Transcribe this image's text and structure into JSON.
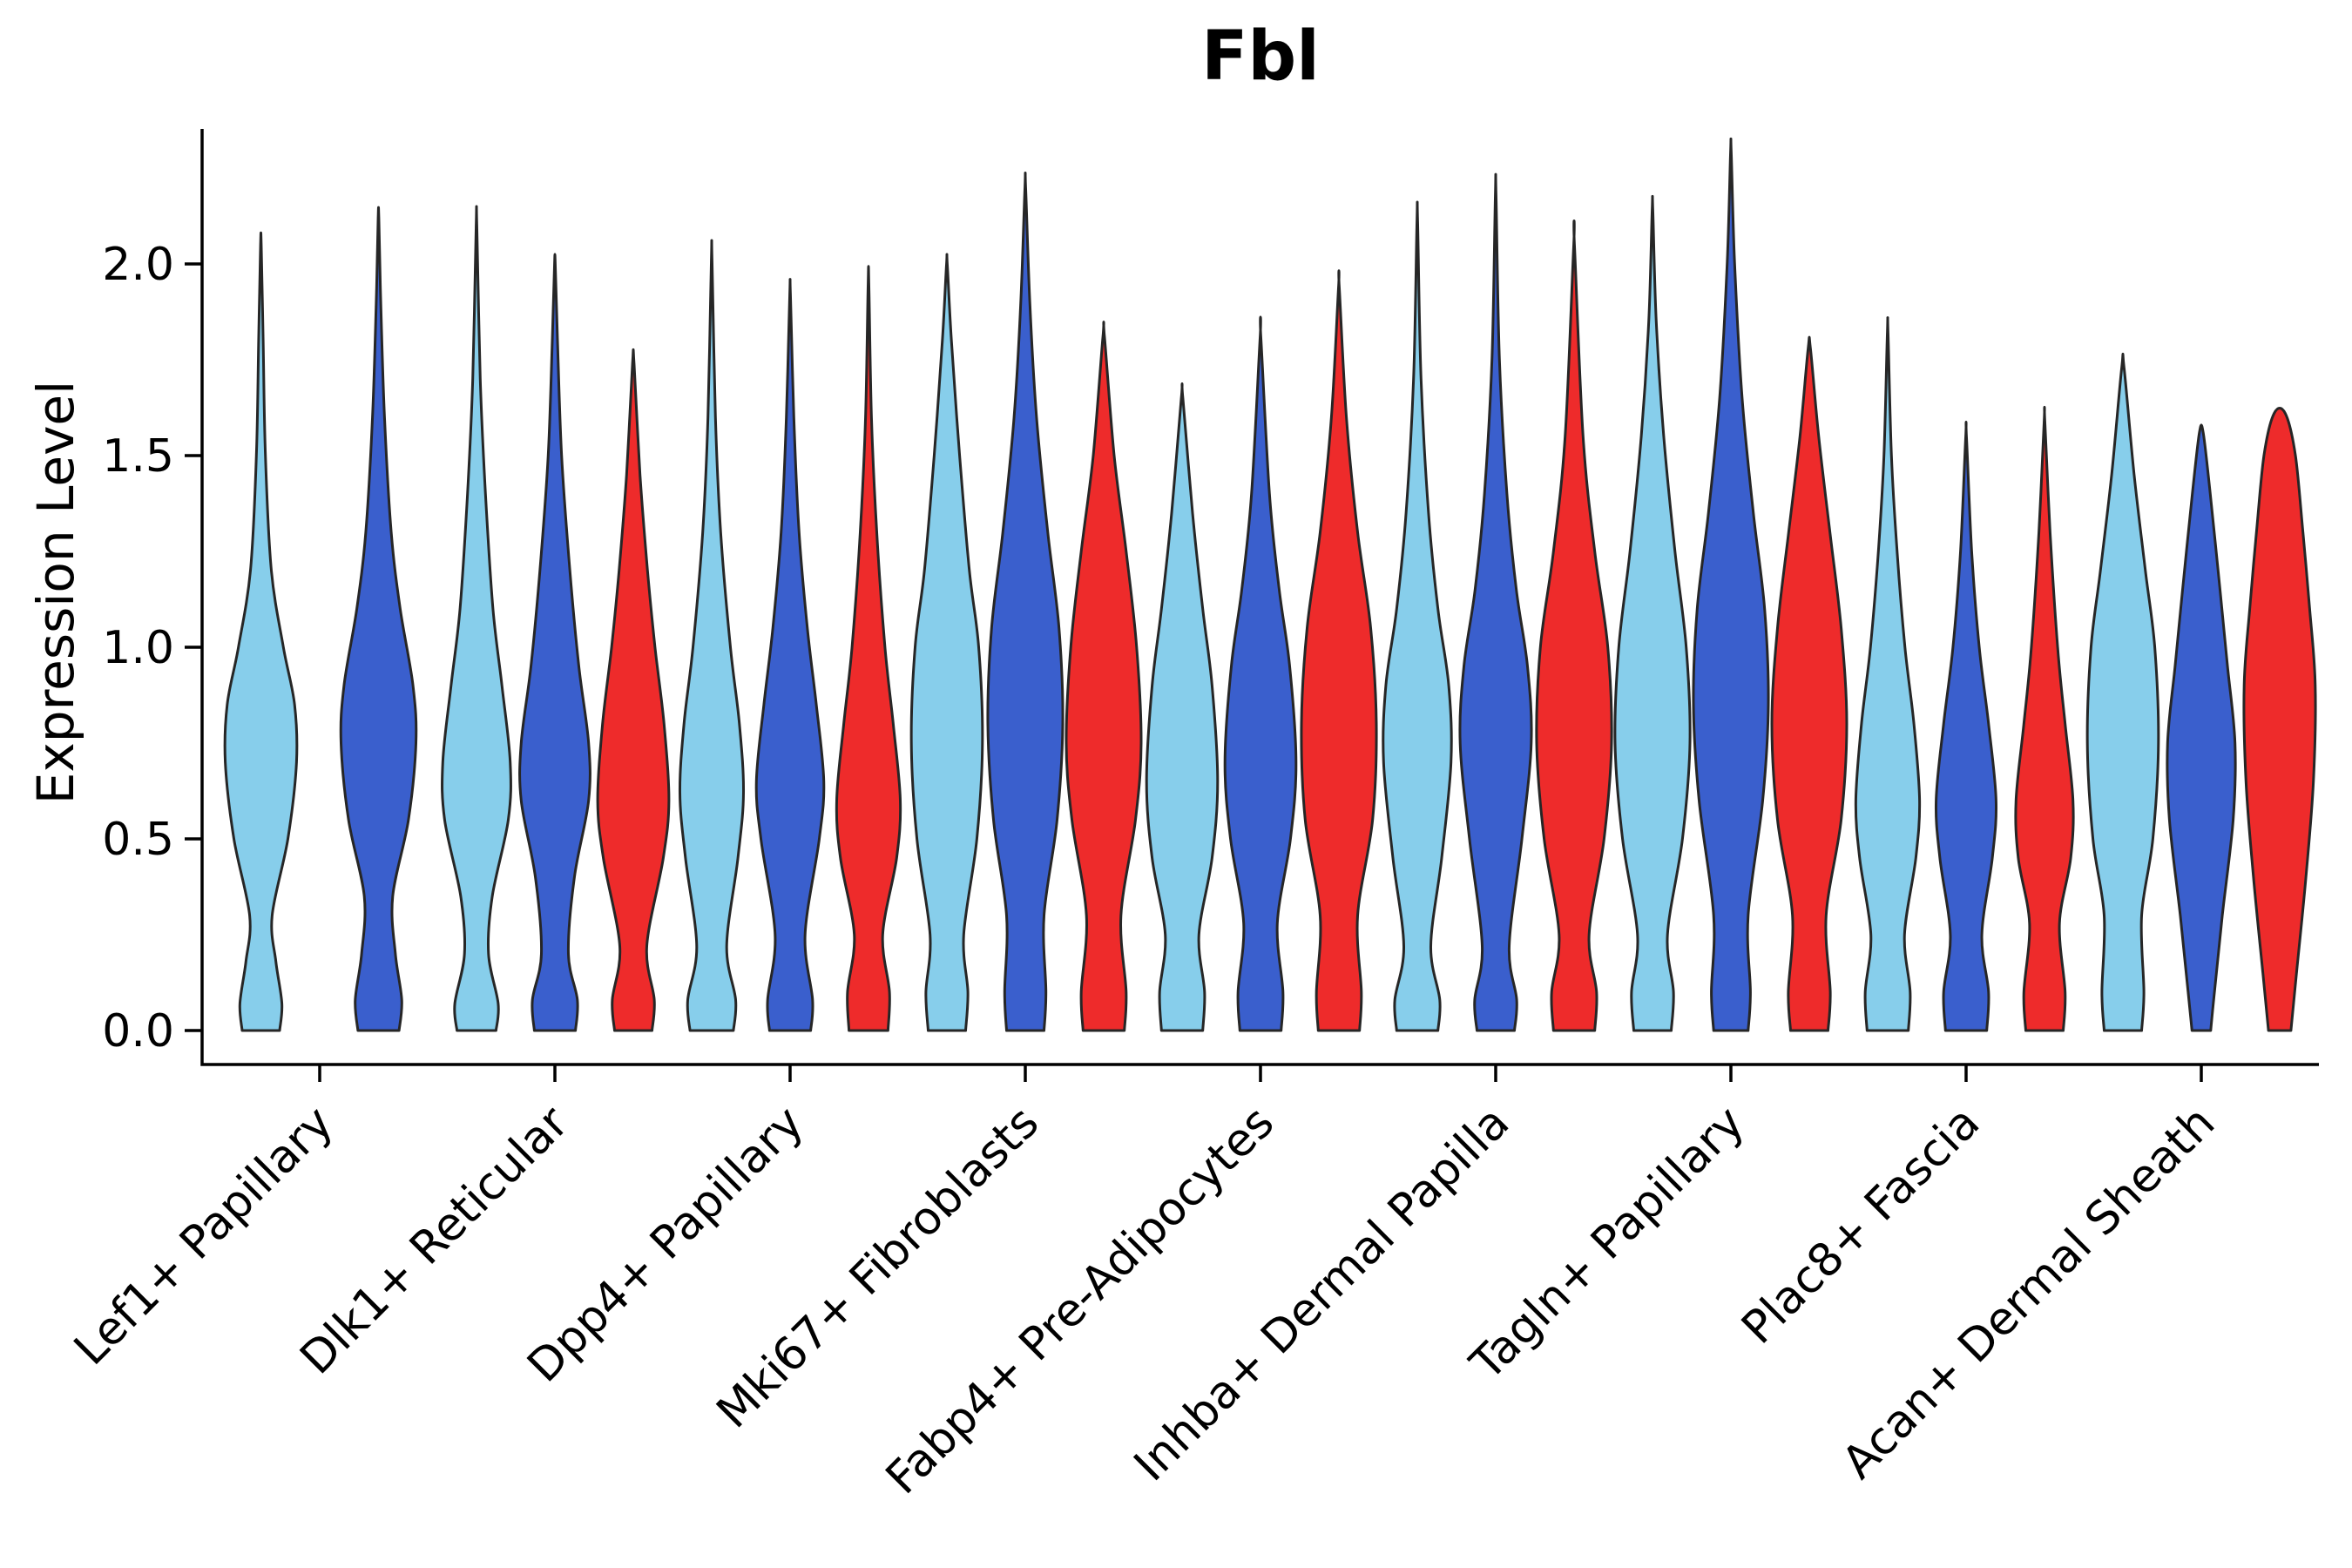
{
  "figure": {
    "background": "#ffffff"
  },
  "chart_data": {
    "type": "violin",
    "title": "Fbl",
    "ylabel": "Expression Level",
    "xlabel": "",
    "yticks": [
      "0.0",
      "0.5",
      "1.0",
      "1.5",
      "2.0"
    ],
    "ytick_values": [
      0,
      0.5,
      1,
      1.5,
      2
    ],
    "ylim": [
      -0.09,
      2.35
    ],
    "grid": false,
    "legend": "none",
    "categories": [
      "Lef1+ Papillary",
      "Dlk1+ Reticular",
      "Dpp4+ Papillary",
      "Mki67+ Fibroblasts",
      "Fabp4+ Pre-Adipocytes",
      "Inhba+ Dermal Papilla",
      "Tagln+ Papillary",
      "Plac8+ Fascia",
      "Acan+ Dermal Sheath"
    ],
    "series": [
      {
        "name": "light-blue",
        "color": "#87CEEB"
      },
      {
        "name": "royal-blue",
        "color": "#3A5FCD"
      },
      {
        "name": "red",
        "color": "#EE2B2B"
      }
    ],
    "outline_color": "#262626",
    "axis_color": "#000000",
    "violins": [
      {
        "category_index": 0,
        "series_index": 0,
        "max": 2.05,
        "profile": [
          [
            0,
            0.5
          ],
          [
            0.07,
            0.56
          ],
          [
            0.18,
            0.4
          ],
          [
            0.3,
            0.3
          ],
          [
            0.5,
            0.72
          ],
          [
            0.7,
            0.95
          ],
          [
            0.85,
            0.9
          ],
          [
            1.0,
            0.6
          ],
          [
            1.2,
            0.28
          ],
          [
            1.5,
            0.12
          ],
          [
            1.8,
            0.06
          ],
          [
            2.05,
            0.01
          ]
        ]
      },
      {
        "category_index": 0,
        "series_index": 1,
        "max": 2.12,
        "profile": [
          [
            0,
            0.55
          ],
          [
            0.08,
            0.62
          ],
          [
            0.2,
            0.45
          ],
          [
            0.35,
            0.38
          ],
          [
            0.55,
            0.8
          ],
          [
            0.75,
            1.0
          ],
          [
            0.9,
            0.92
          ],
          [
            1.1,
            0.58
          ],
          [
            1.3,
            0.34
          ],
          [
            1.6,
            0.16
          ],
          [
            1.9,
            0.06
          ],
          [
            2.12,
            0.01
          ]
        ]
      },
      {
        "category_index": 1,
        "series_index": 0,
        "max": 2.1,
        "profile": [
          [
            0,
            0.52
          ],
          [
            0.07,
            0.58
          ],
          [
            0.2,
            0.32
          ],
          [
            0.35,
            0.42
          ],
          [
            0.55,
            0.85
          ],
          [
            0.7,
            0.9
          ],
          [
            0.9,
            0.68
          ],
          [
            1.1,
            0.44
          ],
          [
            1.4,
            0.24
          ],
          [
            1.7,
            0.1
          ],
          [
            2.1,
            0.01
          ]
        ]
      },
      {
        "category_index": 1,
        "series_index": 1,
        "max": 2.0,
        "profile": [
          [
            0,
            0.55
          ],
          [
            0.08,
            0.6
          ],
          [
            0.2,
            0.36
          ],
          [
            0.4,
            0.52
          ],
          [
            0.6,
            0.9
          ],
          [
            0.75,
            0.9
          ],
          [
            0.95,
            0.64
          ],
          [
            1.2,
            0.4
          ],
          [
            1.5,
            0.18
          ],
          [
            1.8,
            0.07
          ],
          [
            2.0,
            0.01
          ]
        ]
      },
      {
        "category_index": 1,
        "series_index": 2,
        "max": 1.74,
        "profile": [
          [
            0,
            0.5
          ],
          [
            0.08,
            0.56
          ],
          [
            0.22,
            0.36
          ],
          [
            0.45,
            0.8
          ],
          [
            0.6,
            0.95
          ],
          [
            0.8,
            0.82
          ],
          [
            1.0,
            0.58
          ],
          [
            1.2,
            0.38
          ],
          [
            1.45,
            0.18
          ],
          [
            1.74,
            0.02
          ]
        ]
      },
      {
        "category_index": 2,
        "series_index": 0,
        "max": 2.01,
        "profile": [
          [
            0,
            0.58
          ],
          [
            0.08,
            0.64
          ],
          [
            0.22,
            0.4
          ],
          [
            0.45,
            0.7
          ],
          [
            0.62,
            0.85
          ],
          [
            0.8,
            0.74
          ],
          [
            1.0,
            0.5
          ],
          [
            1.3,
            0.24
          ],
          [
            1.6,
            0.1
          ],
          [
            2.01,
            0.01
          ]
        ]
      },
      {
        "category_index": 2,
        "series_index": 1,
        "max": 1.92,
        "profile": [
          [
            0,
            0.55
          ],
          [
            0.08,
            0.6
          ],
          [
            0.25,
            0.4
          ],
          [
            0.5,
            0.78
          ],
          [
            0.65,
            0.9
          ],
          [
            0.85,
            0.7
          ],
          [
            1.05,
            0.46
          ],
          [
            1.3,
            0.24
          ],
          [
            1.6,
            0.1
          ],
          [
            1.92,
            0.01
          ]
        ]
      },
      {
        "category_index": 2,
        "series_index": 2,
        "max": 1.95,
        "profile": [
          [
            0,
            0.52
          ],
          [
            0.1,
            0.56
          ],
          [
            0.25,
            0.38
          ],
          [
            0.45,
            0.75
          ],
          [
            0.6,
            0.85
          ],
          [
            0.8,
            0.66
          ],
          [
            1.0,
            0.44
          ],
          [
            1.3,
            0.22
          ],
          [
            1.6,
            0.08
          ],
          [
            1.95,
            0.01
          ]
        ]
      },
      {
        "category_index": 3,
        "series_index": 0,
        "max": 2.0,
        "profile": [
          [
            0,
            0.5
          ],
          [
            0.1,
            0.56
          ],
          [
            0.25,
            0.45
          ],
          [
            0.5,
            0.8
          ],
          [
            0.75,
            0.95
          ],
          [
            1.0,
            0.85
          ],
          [
            1.2,
            0.6
          ],
          [
            1.5,
            0.34
          ],
          [
            1.8,
            0.12
          ],
          [
            2.0,
            0.01
          ]
        ]
      },
      {
        "category_index": 3,
        "series_index": 1,
        "max": 2.2,
        "profile": [
          [
            0,
            0.5
          ],
          [
            0.1,
            0.55
          ],
          [
            0.3,
            0.5
          ],
          [
            0.55,
            0.85
          ],
          [
            0.8,
            1.0
          ],
          [
            1.05,
            0.9
          ],
          [
            1.3,
            0.6
          ],
          [
            1.6,
            0.3
          ],
          [
            1.9,
            0.12
          ],
          [
            2.2,
            0.01
          ]
        ]
      },
      {
        "category_index": 3,
        "series_index": 2,
        "max": 1.81,
        "profile": [
          [
            0,
            0.55
          ],
          [
            0.1,
            0.6
          ],
          [
            0.3,
            0.46
          ],
          [
            0.55,
            0.85
          ],
          [
            0.75,
            1.0
          ],
          [
            1.0,
            0.88
          ],
          [
            1.25,
            0.6
          ],
          [
            1.5,
            0.28
          ],
          [
            1.81,
            0.02
          ]
        ]
      },
      {
        "category_index": 4,
        "series_index": 0,
        "max": 1.65,
        "profile": [
          [
            0,
            0.55
          ],
          [
            0.1,
            0.6
          ],
          [
            0.25,
            0.45
          ],
          [
            0.45,
            0.8
          ],
          [
            0.65,
            0.95
          ],
          [
            0.9,
            0.8
          ],
          [
            1.1,
            0.55
          ],
          [
            1.35,
            0.28
          ],
          [
            1.65,
            0.02
          ]
        ]
      },
      {
        "category_index": 4,
        "series_index": 1,
        "max": 1.81,
        "profile": [
          [
            0,
            0.55
          ],
          [
            0.1,
            0.6
          ],
          [
            0.28,
            0.45
          ],
          [
            0.5,
            0.8
          ],
          [
            0.7,
            0.95
          ],
          [
            0.95,
            0.78
          ],
          [
            1.15,
            0.5
          ],
          [
            1.4,
            0.24
          ],
          [
            1.81,
            0.01
          ]
        ]
      },
      {
        "category_index": 4,
        "series_index": 2,
        "max": 1.94,
        "profile": [
          [
            0,
            0.55
          ],
          [
            0.1,
            0.6
          ],
          [
            0.3,
            0.5
          ],
          [
            0.55,
            0.9
          ],
          [
            0.8,
            1.0
          ],
          [
            1.05,
            0.85
          ],
          [
            1.3,
            0.5
          ],
          [
            1.6,
            0.2
          ],
          [
            1.94,
            0.01
          ]
        ]
      },
      {
        "category_index": 5,
        "series_index": 0,
        "max": 2.11,
        "profile": [
          [
            0,
            0.55
          ],
          [
            0.08,
            0.6
          ],
          [
            0.22,
            0.36
          ],
          [
            0.45,
            0.65
          ],
          [
            0.7,
            0.9
          ],
          [
            0.9,
            0.84
          ],
          [
            1.1,
            0.55
          ],
          [
            1.35,
            0.3
          ],
          [
            1.7,
            0.1
          ],
          [
            2.11,
            0.01
          ]
        ]
      },
      {
        "category_index": 5,
        "series_index": 1,
        "max": 2.18,
        "profile": [
          [
            0,
            0.5
          ],
          [
            0.08,
            0.56
          ],
          [
            0.22,
            0.36
          ],
          [
            0.5,
            0.7
          ],
          [
            0.75,
            0.95
          ],
          [
            0.95,
            0.85
          ],
          [
            1.15,
            0.55
          ],
          [
            1.4,
            0.3
          ],
          [
            1.75,
            0.1
          ],
          [
            2.18,
            0.01
          ]
        ]
      },
      {
        "category_index": 5,
        "series_index": 2,
        "max": 2.05,
        "profile": [
          [
            0,
            0.55
          ],
          [
            0.1,
            0.6
          ],
          [
            0.25,
            0.4
          ],
          [
            0.5,
            0.8
          ],
          [
            0.75,
            1.0
          ],
          [
            1.0,
            0.9
          ],
          [
            1.25,
            0.55
          ],
          [
            1.55,
            0.24
          ],
          [
            2.05,
            0.01
          ]
        ]
      },
      {
        "category_index": 6,
        "series_index": 0,
        "max": 2.14,
        "profile": [
          [
            0,
            0.5
          ],
          [
            0.1,
            0.56
          ],
          [
            0.25,
            0.4
          ],
          [
            0.5,
            0.8
          ],
          [
            0.75,
            1.0
          ],
          [
            1.0,
            0.9
          ],
          [
            1.25,
            0.6
          ],
          [
            1.55,
            0.3
          ],
          [
            1.85,
            0.1
          ],
          [
            2.14,
            0.01
          ]
        ]
      },
      {
        "category_index": 6,
        "series_index": 1,
        "max": 2.29,
        "profile": [
          [
            0,
            0.46
          ],
          [
            0.1,
            0.52
          ],
          [
            0.3,
            0.46
          ],
          [
            0.6,
            0.85
          ],
          [
            0.85,
            1.0
          ],
          [
            1.1,
            0.9
          ],
          [
            1.35,
            0.6
          ],
          [
            1.65,
            0.3
          ],
          [
            2.0,
            0.1
          ],
          [
            2.29,
            0.01
          ]
        ]
      },
      {
        "category_index": 6,
        "series_index": 2,
        "max": 1.78,
        "profile": [
          [
            0,
            0.5
          ],
          [
            0.1,
            0.56
          ],
          [
            0.3,
            0.45
          ],
          [
            0.55,
            0.85
          ],
          [
            0.8,
            1.0
          ],
          [
            1.05,
            0.85
          ],
          [
            1.3,
            0.55
          ],
          [
            1.55,
            0.25
          ],
          [
            1.78,
            0.03
          ]
        ]
      },
      {
        "category_index": 7,
        "series_index": 0,
        "max": 1.82,
        "profile": [
          [
            0,
            0.55
          ],
          [
            0.1,
            0.6
          ],
          [
            0.25,
            0.45
          ],
          [
            0.45,
            0.75
          ],
          [
            0.6,
            0.85
          ],
          [
            0.8,
            0.7
          ],
          [
            1.0,
            0.46
          ],
          [
            1.25,
            0.25
          ],
          [
            1.5,
            0.1
          ],
          [
            1.82,
            0.01
          ]
        ]
      },
      {
        "category_index": 7,
        "series_index": 1,
        "max": 1.55,
        "profile": [
          [
            0,
            0.55
          ],
          [
            0.1,
            0.6
          ],
          [
            0.25,
            0.42
          ],
          [
            0.45,
            0.7
          ],
          [
            0.6,
            0.8
          ],
          [
            0.8,
            0.6
          ],
          [
            1.0,
            0.35
          ],
          [
            1.25,
            0.15
          ],
          [
            1.55,
            0.01
          ]
        ]
      },
      {
        "category_index": 7,
        "series_index": 2,
        "max": 1.59,
        "profile": [
          [
            0,
            0.5
          ],
          [
            0.1,
            0.55
          ],
          [
            0.28,
            0.4
          ],
          [
            0.45,
            0.7
          ],
          [
            0.6,
            0.76
          ],
          [
            0.8,
            0.55
          ],
          [
            1.0,
            0.35
          ],
          [
            1.3,
            0.15
          ],
          [
            1.59,
            0.01
          ]
        ]
      },
      {
        "category_index": 8,
        "series_index": 0,
        "max": 1.73,
        "profile": [
          [
            0,
            0.5
          ],
          [
            0.1,
            0.56
          ],
          [
            0.3,
            0.5
          ],
          [
            0.5,
            0.8
          ],
          [
            0.75,
            0.95
          ],
          [
            1.0,
            0.85
          ],
          [
            1.2,
            0.6
          ],
          [
            1.45,
            0.3
          ],
          [
            1.73,
            0.03
          ]
        ]
      },
      {
        "category_index": 8,
        "series_index": 1,
        "max": 1.56,
        "profile": [
          [
            0,
            0.25
          ],
          [
            0.1,
            0.35
          ],
          [
            0.3,
            0.56
          ],
          [
            0.55,
            0.85
          ],
          [
            0.75,
            0.9
          ],
          [
            0.95,
            0.7
          ],
          [
            1.15,
            0.5
          ],
          [
            1.4,
            0.24
          ],
          [
            1.56,
            0.05
          ]
        ]
      },
      {
        "category_index": 8,
        "series_index": 2,
        "max": 1.61,
        "profile": [
          [
            0,
            0.3
          ],
          [
            0.15,
            0.45
          ],
          [
            0.4,
            0.7
          ],
          [
            0.65,
            0.9
          ],
          [
            0.9,
            0.95
          ],
          [
            1.1,
            0.8
          ],
          [
            1.3,
            0.62
          ],
          [
            1.5,
            0.42
          ],
          [
            1.61,
            0.15
          ]
        ]
      }
    ]
  }
}
